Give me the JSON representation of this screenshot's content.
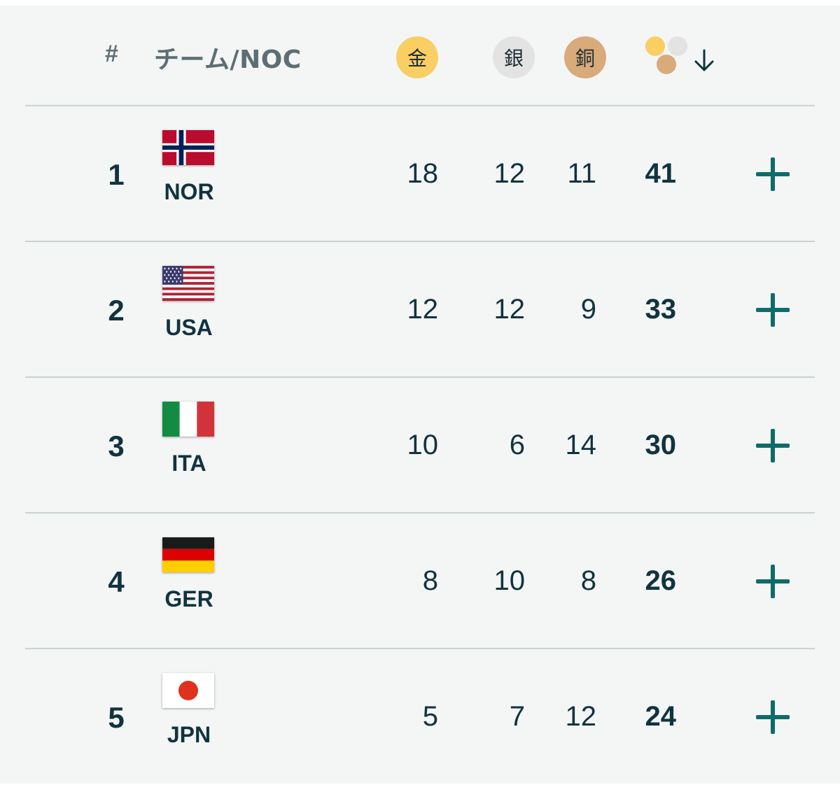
{
  "header": {
    "rank_label": "#",
    "team_label": "チーム/NOC",
    "gold_label": "金",
    "silver_label": "銀",
    "bronze_label": "銅",
    "total_icon": "medals-total-icon",
    "sort_icon": "arrow-down-icon"
  },
  "colors": {
    "gold": "#f9cf63",
    "silver": "#e3e3e3",
    "bronze": "#d9aa7a",
    "accent": "#0f6b6b",
    "text": "#10333f",
    "background": "#f4f5f5"
  },
  "rows": [
    {
      "rank": "1",
      "noc": "NOR",
      "gold": "18",
      "silver": "12",
      "bronze": "11",
      "total": "41",
      "flag": "norway-flag"
    },
    {
      "rank": "2",
      "noc": "USA",
      "gold": "12",
      "silver": "12",
      "bronze": "9",
      "total": "33",
      "flag": "usa-flag"
    },
    {
      "rank": "3",
      "noc": "ITA",
      "gold": "10",
      "silver": "6",
      "bronze": "14",
      "total": "30",
      "flag": "italy-flag"
    },
    {
      "rank": "4",
      "noc": "GER",
      "gold": "8",
      "silver": "10",
      "bronze": "8",
      "total": "26",
      "flag": "germany-flag"
    },
    {
      "rank": "5",
      "noc": "JPN",
      "gold": "5",
      "silver": "7",
      "bronze": "12",
      "total": "24",
      "flag": "japan-flag"
    }
  ]
}
